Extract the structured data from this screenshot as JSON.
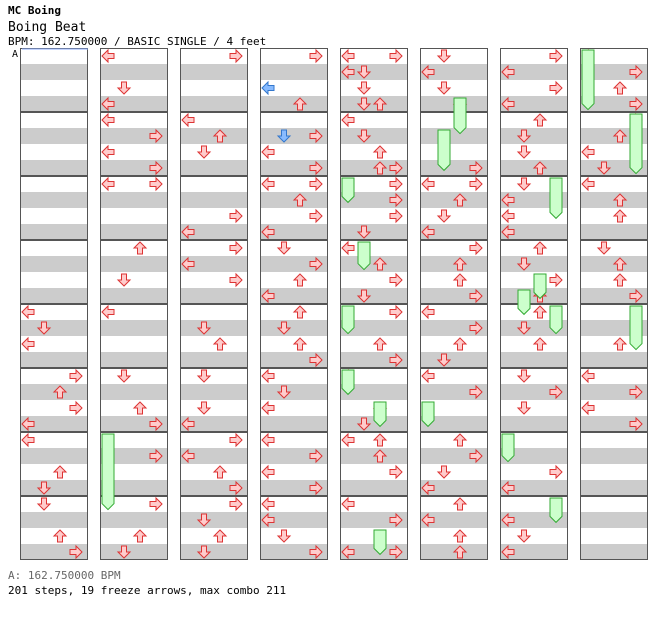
{
  "header": {
    "artist": "MC Boing",
    "title": "Boing Beat",
    "info": "BPM: 162.750000 / BASIC SINGLE / 4 feet"
  },
  "bpm_marker": "A",
  "footer": {
    "bpm_line": "A: 162.750000 BPM",
    "stats": "201 steps, 19 freeze arrows, max combo 211"
  },
  "colors": {
    "stripe": "#cccccc",
    "arrow_fill": "#ffcccc",
    "arrow_stroke": "#dd3333",
    "freeze_fill": "#ccffcc",
    "freeze_stroke": "#33aa33",
    "special_fill": "#88bbff",
    "special_stroke": "#3377cc",
    "bpm_line": "#88aaff"
  }
}
